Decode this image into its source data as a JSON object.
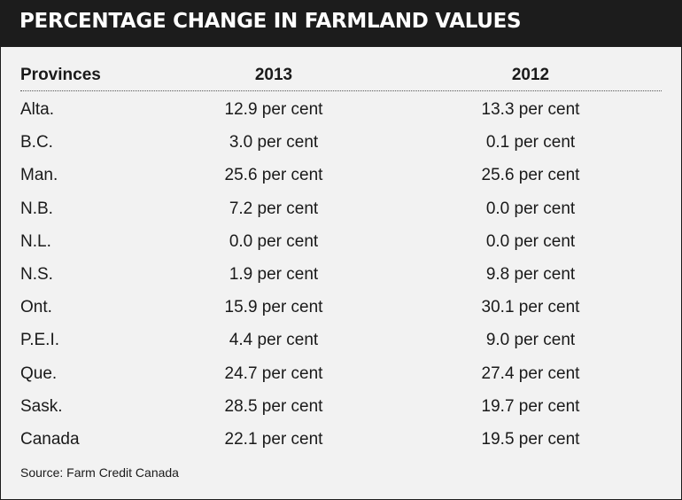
{
  "title": "PERCENTAGE CHANGE IN FARMLAND VALUES",
  "source": "Source: Farm Credit Canada",
  "chart_data": {
    "type": "table",
    "title": "PERCENTAGE CHANGE IN FARMLAND VALUES",
    "columns": [
      "Provinces",
      "2013",
      "2012"
    ],
    "rows": [
      [
        "Alta.",
        "12.9 per cent",
        "13.3 per cent"
      ],
      [
        "B.C.",
        "3.0 per cent",
        "0.1 per cent"
      ],
      [
        "Man.",
        "25.6 per cent",
        "25.6 per cent"
      ],
      [
        "N.B.",
        "7.2 per cent",
        "0.0 per cent"
      ],
      [
        "N.L.",
        "0.0 per cent",
        "0.0 per cent"
      ],
      [
        "N.S.",
        "1.9 per cent",
        "9.8 per cent"
      ],
      [
        "Ont.",
        "15.9 per cent",
        "30.1 per cent"
      ],
      [
        "P.E.I.",
        "4.4 per cent",
        "9.0 per cent"
      ],
      [
        "Que.",
        "24.7 per cent",
        "27.4 per cent"
      ],
      [
        "Sask.",
        "28.5 per cent",
        "19.7 per cent"
      ],
      [
        "Canada",
        "22.1 per cent",
        "19.5 per cent"
      ]
    ],
    "source": "Source: Farm Credit Canada"
  }
}
